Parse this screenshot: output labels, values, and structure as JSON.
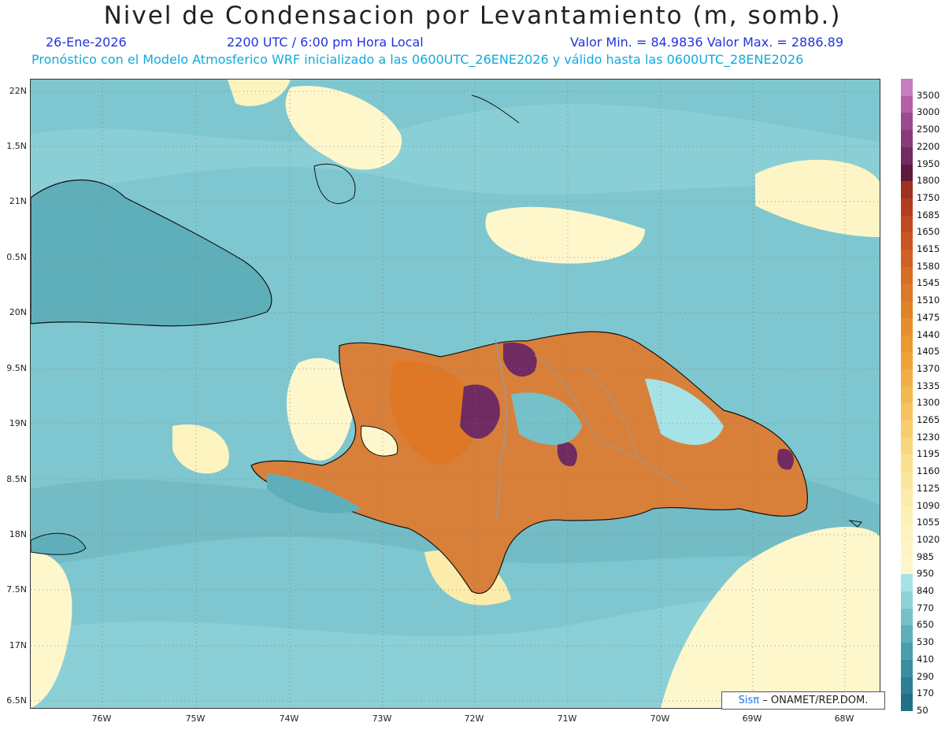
{
  "title": "Nivel de Condensacion por Levantamiento (m, somb.)",
  "date": "26-Ene-2026",
  "time": "2200 UTC / 6:00 pm Hora Local",
  "min_max": "Valor Min. = 84.9836  Valor Max. = 2886.89",
  "forecast_info": "Pronóstico con el Modelo Atmosferico WRF inicializado a las 0600UTC_26ENE2026 y válido hasta las  0600UTC_28ENE2026",
  "lat_labels": [
    "22N",
    "1.5N",
    "21N",
    "0.5N",
    "20N",
    "9.5N",
    "19N",
    "8.5N",
    "18N",
    "7.5N",
    "17N",
    "6.5N"
  ],
  "lon_labels": [
    "76W",
    "75W",
    "74W",
    "73W",
    "72W",
    "71W",
    "70W",
    "69W",
    "68W"
  ],
  "legend": {
    "labels": [
      "3500",
      "3000",
      "2500",
      "2200",
      "1950",
      "1800",
      "1750",
      "1685",
      "1650",
      "1615",
      "1580",
      "1545",
      "1510",
      "1475",
      "1440",
      "1405",
      "1370",
      "1335",
      "1300",
      "1265",
      "1230",
      "1195",
      "1160",
      "1125",
      "1090",
      "1055",
      "1020",
      "985",
      "950",
      "840",
      "770",
      "650",
      "530",
      "410",
      "290",
      "170",
      "50"
    ],
    "colors": [
      "#c77cc0",
      "#b45fa8",
      "#9b4a92",
      "#8a3a7a",
      "#702b62",
      "#5e1a3e",
      "#a0301f",
      "#b23d1e",
      "#bf4a1f",
      "#c95620",
      "#d16122",
      "#d86d24",
      "#de7826",
      "#e28228",
      "#e78e2c",
      "#eb9932",
      "#eea33a",
      "#f1ae44",
      "#f4b851",
      "#f6c35f",
      "#f8cd6e",
      "#f9d67e",
      "#fadf8e",
      "#fbe69d",
      "#fcecab",
      "#fcf0b5",
      "#fdf3be",
      "#fdf5c5",
      "#fef7cc",
      "#a6e3e6",
      "#8fd2d8",
      "#75c0c9",
      "#5fafbb",
      "#4a9eae",
      "#3a8ea1",
      "#2e7f95",
      "#226f88"
    ]
  },
  "credit": {
    "brand": "Sisπ",
    "org": "– ONAMET/REP.DOM."
  },
  "colors": {
    "title": "#222222",
    "subtitle_blue": "#2233dd",
    "subtitle_cyan": "#11aadd",
    "sea": "#7fc7d0",
    "land_outline": "#111111",
    "border_gray": "#999999"
  }
}
